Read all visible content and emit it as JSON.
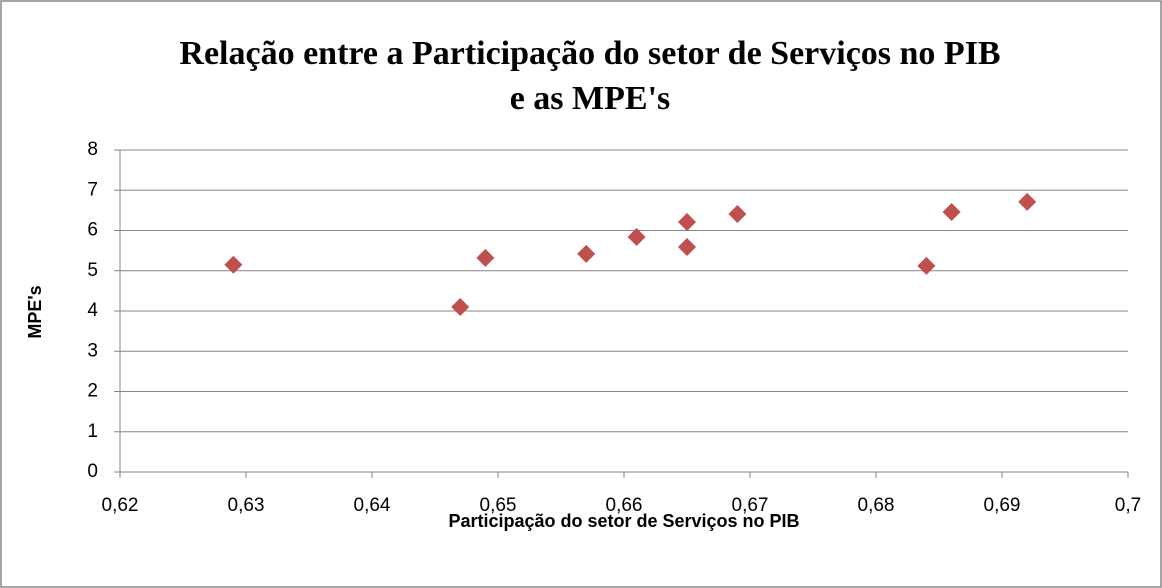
{
  "chart_data": {
    "type": "scatter",
    "title": [
      "Relação entre a Participação do setor de Serviços no PIB",
      "e as MPE's"
    ],
    "xlabel": "Participação do setor de Serviços no PIB",
    "ylabel": "MPE's",
    "x": [
      0.629,
      0.647,
      0.649,
      0.657,
      0.661,
      0.665,
      0.665,
      0.669,
      0.684,
      0.686,
      0.692
    ],
    "values": [
      5.15,
      4.1,
      5.32,
      5.42,
      5.84,
      6.21,
      5.59,
      6.41,
      5.12,
      6.46,
      6.71
    ],
    "color": "#c0504d",
    "xlim": [
      0.62,
      0.7
    ],
    "xticks": [
      {
        "value": 0.62,
        "label": "0,62"
      },
      {
        "value": 0.63,
        "label": "0,63"
      },
      {
        "value": 0.64,
        "label": "0,64"
      },
      {
        "value": 0.65,
        "label": "0,65"
      },
      {
        "value": 0.66,
        "label": "0,66"
      },
      {
        "value": 0.67,
        "label": "0,67"
      },
      {
        "value": 0.68,
        "label": "0,68"
      },
      {
        "value": 0.69,
        "label": "0,69"
      },
      {
        "value": 0.7,
        "label": "0,7"
      }
    ],
    "ylim": [
      0,
      8
    ],
    "yticks": [
      0,
      1,
      2,
      3,
      4,
      5,
      6,
      7,
      8
    ],
    "grid": true
  }
}
